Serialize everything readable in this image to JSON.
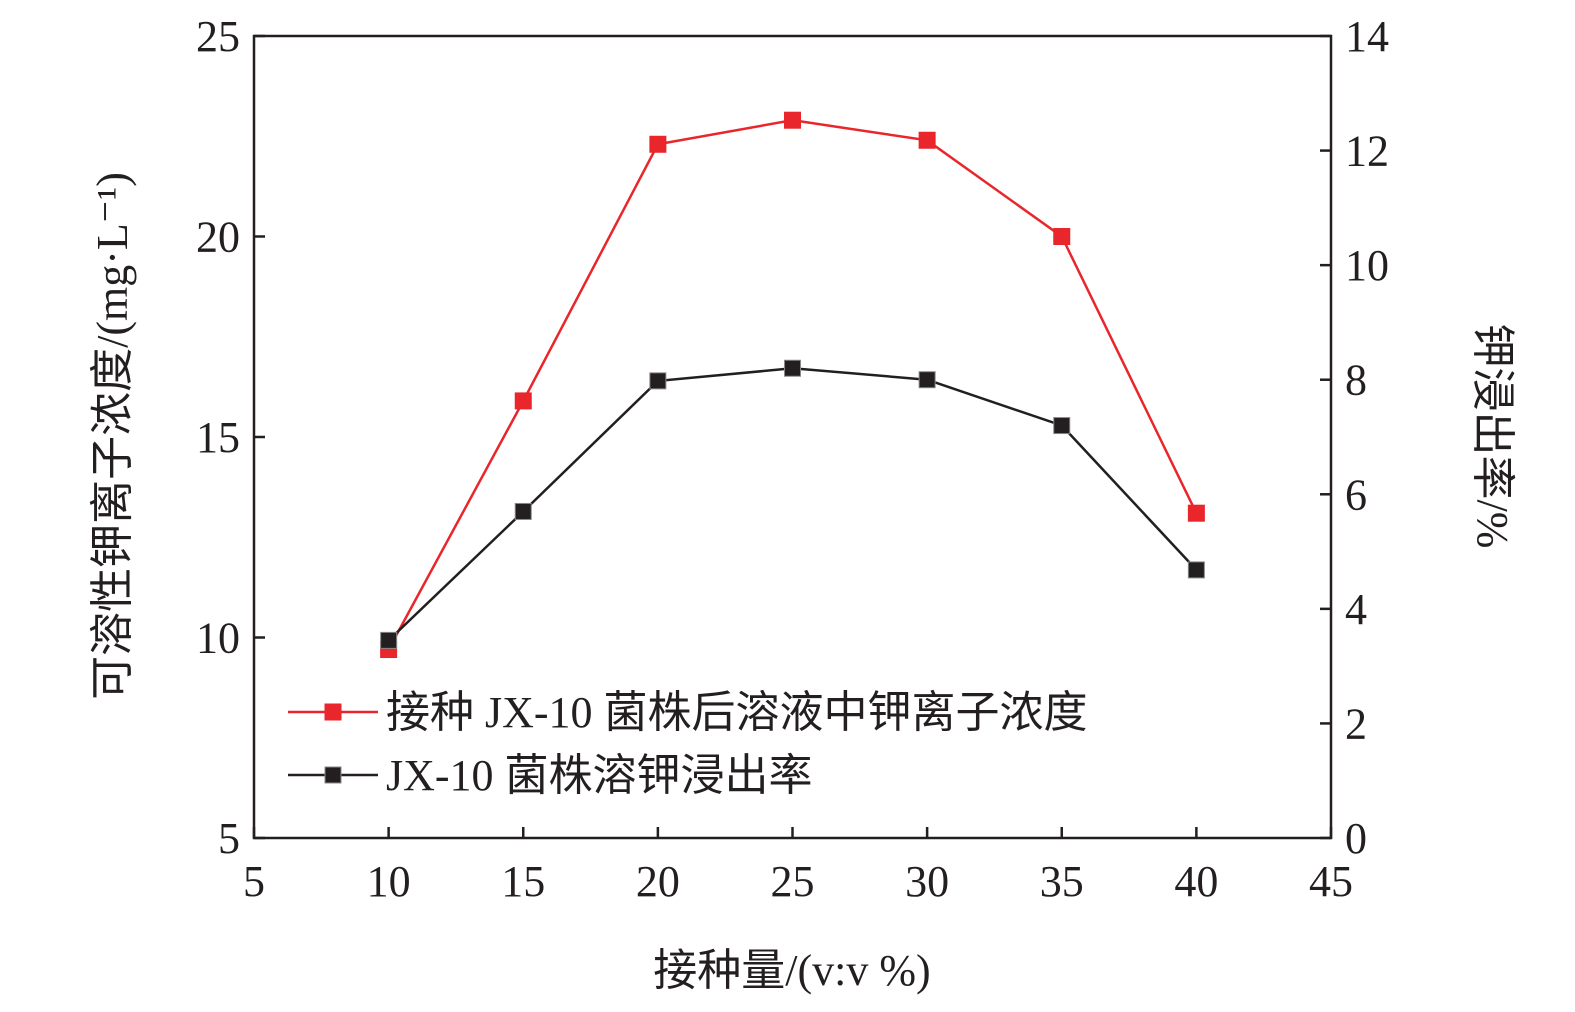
{
  "chart_data": {
    "type": "line",
    "xlabel": "接种量/(v:v %)",
    "ylabel_left": "可溶性钾离子浓度/(mg·L⁻¹)",
    "ylabel_right": "钾浸出率/%",
    "xlim": [
      5,
      45
    ],
    "ylim_left": [
      5,
      25
    ],
    "ylim_right": [
      0,
      14
    ],
    "xticks": [
      "5",
      "10",
      "15",
      "20",
      "25",
      "30",
      "35",
      "40",
      "45"
    ],
    "yticks_left": [
      "5",
      "10",
      "15",
      "20",
      "25"
    ],
    "yticks_right": [
      "0",
      "2",
      "4",
      "6",
      "8",
      "10",
      "12",
      "14"
    ],
    "legend_position": "center-left",
    "grid": false,
    "series": [
      {
        "name": "接种 JX-10 菌株后溶液中钾离子浓度",
        "axis": "left",
        "color": "#e8262b",
        "marker": "square",
        "x": [
          10,
          15,
          20,
          25,
          30,
          35,
          40
        ],
        "values": [
          9.7,
          15.9,
          22.3,
          22.9,
          22.4,
          20.0,
          13.1
        ]
      },
      {
        "name": "JX-10 菌株溶钾浸出率",
        "axis": "right",
        "color": "#231f20",
        "marker": "square",
        "x": [
          10,
          15,
          20,
          25,
          30,
          35,
          40
        ],
        "values": [
          3.45,
          5.7,
          7.98,
          8.2,
          8.0,
          7.2,
          4.68
        ]
      }
    ]
  }
}
